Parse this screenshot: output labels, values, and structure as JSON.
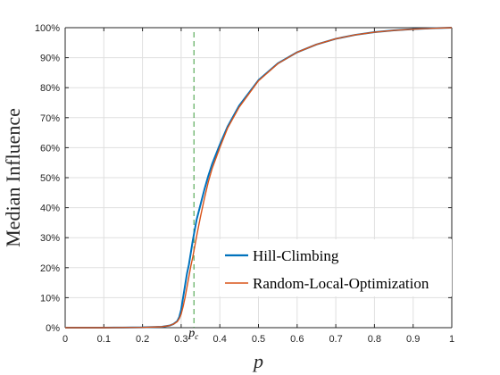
{
  "chart_data": {
    "type": "line",
    "xlabel": "p",
    "ylabel": "Median Influence",
    "xlim": [
      0,
      1
    ],
    "ylim": [
      0,
      100
    ],
    "x_ticks": [
      "0",
      "0.1",
      "0.2",
      "0.3",
      "0.4",
      "0.5",
      "0.6",
      "0.7",
      "0.8",
      "0.9",
      "1"
    ],
    "y_ticks": [
      "0%",
      "10%",
      "20%",
      "30%",
      "40%",
      "50%",
      "60%",
      "70%",
      "80%",
      "90%",
      "100%"
    ],
    "grid": true,
    "legend_position": "bottom-right",
    "threshold": {
      "label_base": "p",
      "label_sub": "c",
      "x": 0.333,
      "color": "#3a9a3a"
    },
    "series": [
      {
        "name": "Hill-Climbing",
        "color": "#0072BD",
        "x": [
          0,
          0.05,
          0.1,
          0.15,
          0.2,
          0.25,
          0.27,
          0.28,
          0.29,
          0.295,
          0.3,
          0.305,
          0.31,
          0.315,
          0.32,
          0.325,
          0.33,
          0.335,
          0.34,
          0.35,
          0.36,
          0.37,
          0.38,
          0.4,
          0.42,
          0.45,
          0.5,
          0.55,
          0.6,
          0.65,
          0.7,
          0.75,
          0.8,
          0.85,
          0.9,
          0.95,
          1.0
        ],
        "values": [
          0,
          0,
          0,
          0.05,
          0.1,
          0.3,
          0.7,
          1.2,
          2.2,
          3.5,
          6,
          10,
          14,
          18,
          21,
          25,
          29,
          32.5,
          36,
          41,
          46,
          50.5,
          54.5,
          61,
          67,
          74,
          82.5,
          88.1,
          91.8,
          94.4,
          96.3,
          97.6,
          98.5,
          99.1,
          99.5,
          99.8,
          100
        ]
      },
      {
        "name": "Random-Local-Optimization",
        "color": "#D95319",
        "x": [
          0,
          0.05,
          0.1,
          0.15,
          0.2,
          0.25,
          0.27,
          0.28,
          0.29,
          0.295,
          0.3,
          0.305,
          0.31,
          0.315,
          0.32,
          0.325,
          0.33,
          0.335,
          0.34,
          0.35,
          0.36,
          0.37,
          0.38,
          0.4,
          0.42,
          0.45,
          0.5,
          0.55,
          0.6,
          0.65,
          0.7,
          0.75,
          0.8,
          0.85,
          0.9,
          0.95,
          1.0
        ],
        "values": [
          0,
          0,
          0,
          0.05,
          0.1,
          0.3,
          0.7,
          1.2,
          2.0,
          3.0,
          4.5,
          7,
          10,
          13.5,
          17,
          20.5,
          23.5,
          27,
          30.5,
          37,
          43,
          48.5,
          53,
          60,
          66.5,
          73.5,
          82.3,
          88,
          91.8,
          94.4,
          96.3,
          97.6,
          98.5,
          99.1,
          99.5,
          99.8,
          100
        ]
      }
    ]
  }
}
